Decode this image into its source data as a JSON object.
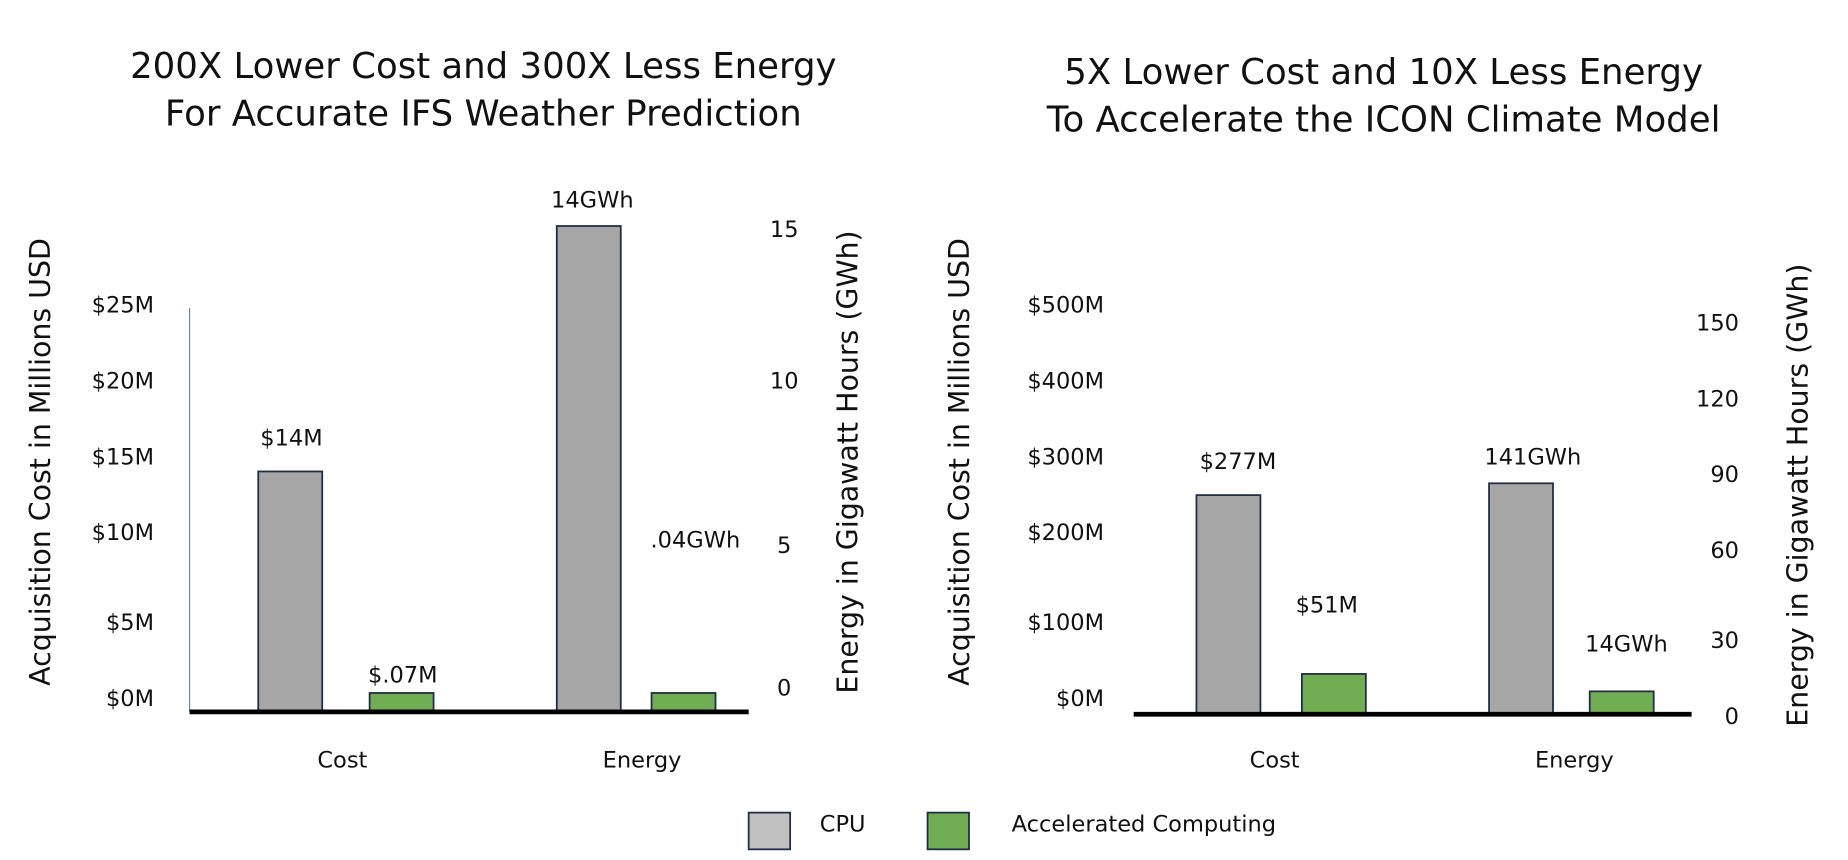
{
  "colors": {
    "cpu": "#a6a6a6",
    "accelerated": "#70ad53",
    "outline": "#1f2d45",
    "axis": "#000000"
  },
  "legend": [
    {
      "label": "CPU",
      "color": "#c0c0c0"
    },
    {
      "label": "Accelerated Computing",
      "color": "#70ad53"
    }
  ],
  "chart_data": [
    {
      "type": "bar",
      "title": [
        "200X Lower Cost and 300X Less Energy",
        "For Accurate IFS Weather Prediction"
      ],
      "categories": [
        "Cost",
        "Energy"
      ],
      "ylabel_left": "Acquisition Cost in Millions USD",
      "ylabel_right": "Energy in Gigawatt Hours (GWh)",
      "left_ticks": [
        "$25M",
        "$20M",
        "$15M",
        "$10M",
        "$5M",
        "$0M"
      ],
      "right_ticks": [
        "15",
        "10",
        "5",
        "0"
      ],
      "ylim_left": [
        0,
        25
      ],
      "ylim_right": [
        0,
        15
      ],
      "series": [
        {
          "name": "CPU",
          "values": [
            14,
            14
          ],
          "labels": [
            "$14M",
            "14GWh"
          ]
        },
        {
          "name": "Accelerated Computing",
          "values": [
            0.07,
            0.04
          ],
          "labels": [
            "$.07M",
            ".04GWh"
          ]
        }
      ]
    },
    {
      "type": "bar",
      "title": [
        "5X Lower Cost and 10X Less Energy",
        "To Accelerate the ICON Climate Model"
      ],
      "categories": [
        "Cost",
        "Energy"
      ],
      "ylabel_left": "Acquisition Cost in Millions USD",
      "ylabel_right": "Energy in Gigawatt Hours (GWh)",
      "left_ticks": [
        "$500M",
        "$400M",
        "$300M",
        "$200M",
        "$100M",
        "$0M"
      ],
      "right_ticks": [
        "150",
        "120",
        "90",
        "60",
        "30",
        "0"
      ],
      "ylim_left": [
        0,
        500
      ],
      "ylim_right": [
        0,
        150
      ],
      "series": [
        {
          "name": "CPU",
          "values": [
            277,
            141
          ],
          "labels": [
            "$277M",
            "141GWh"
          ]
        },
        {
          "name": "Accelerated Computing",
          "values": [
            51,
            14
          ],
          "labels": [
            "$51M",
            "14GWh"
          ]
        }
      ]
    }
  ]
}
